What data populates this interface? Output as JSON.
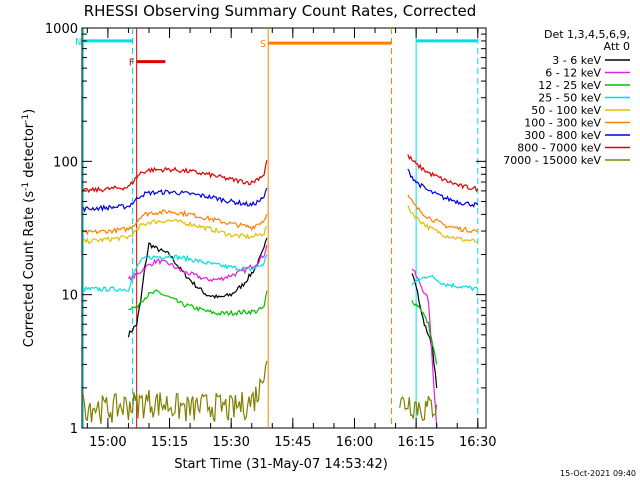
{
  "chart_data": {
    "type": "line",
    "title": "RHESSI Observing Summary Count Rates, Corrected",
    "xlabel": "Start Time (31-May-07 14:53:42)",
    "ylabel": "Corrected Count Rate (s^-1 detector^-1)",
    "yscale": "log",
    "ylim": [
      1,
      1000
    ],
    "xlim": [
      "14:53:42",
      "16:32:00"
    ],
    "x_ticks": [
      "15:00",
      "15:15",
      "15:30",
      "15:45",
      "16:00",
      "16:15",
      "16:30"
    ],
    "y_ticks": [
      "1",
      "10",
      "100",
      "1000"
    ],
    "footer_date": "15-Oct-2021 09:40",
    "legend": {
      "header": [
        "Det 1,3,4,5,6,9,",
        "Att 0"
      ],
      "placement": "right"
    },
    "series": [
      {
        "name": "3 - 6 keV",
        "color": "#000000",
        "x": [
          "15:05",
          "15:06",
          "15:07",
          "15:08",
          "15:09",
          "15:10",
          "15:12",
          "15:15",
          "15:18",
          "15:21",
          "15:24",
          "15:27",
          "15:30",
          "15:33",
          "15:36",
          "15:38",
          "15:39",
          "16:14",
          "16:15",
          "16:16",
          "16:17",
          "16:18",
          "16:19",
          "16:20"
        ],
        "y": [
          5,
          5.5,
          6,
          9,
          16,
          24,
          22,
          20,
          15,
          12,
          10,
          9.5,
          10,
          12,
          16,
          22,
          30,
          15,
          12,
          8,
          6,
          5,
          4,
          2
        ]
      },
      {
        "name": "6 - 12 keV",
        "color": "#e020e0",
        "x": [
          "15:05",
          "15:07",
          "15:09",
          "15:12",
          "15:15",
          "15:18",
          "15:21",
          "15:24",
          "15:27",
          "15:30",
          "15:33",
          "15:36",
          "15:38",
          "15:39",
          "16:14",
          "16:16",
          "16:18",
          "16:20"
        ],
        "y": [
          13,
          14,
          16,
          18,
          17,
          15,
          14,
          13,
          13,
          14,
          15,
          17,
          20,
          25,
          16,
          12,
          9,
          1
        ]
      },
      {
        "name": "12 - 25 keV",
        "color": "#00c000",
        "x": [
          "15:05",
          "15:07",
          "15:08",
          "15:10",
          "15:12",
          "15:15",
          "15:18",
          "15:21",
          "15:24",
          "15:27",
          "15:30",
          "15:33",
          "15:36",
          "15:38",
          "15:39",
          "16:14",
          "16:16",
          "16:18",
          "16:20"
        ],
        "y": [
          8,
          8,
          9,
          10,
          10.5,
          9.5,
          8.5,
          8,
          7.5,
          7.2,
          7.3,
          7.4,
          7.5,
          8,
          12,
          9,
          8,
          6,
          3
        ]
      },
      {
        "name": "25 - 50 keV",
        "color": "#00e0e0",
        "x": [
          "14:54",
          "15:00",
          "15:05",
          "15:07",
          "15:08",
          "15:10",
          "15:15",
          "15:20",
          "15:25",
          "15:30",
          "15:35",
          "15:38",
          "15:39",
          "16:14",
          "16:16",
          "16:18",
          "16:22",
          "16:26",
          "16:30"
        ],
        "y": [
          11,
          11,
          11,
          16,
          18,
          19,
          19.5,
          18.5,
          17,
          16,
          15.5,
          17,
          22,
          12,
          13,
          14,
          12,
          11.5,
          11
        ]
      },
      {
        "name": "50 - 100 keV",
        "color": "#e0c000",
        "x": [
          "14:54",
          "15:00",
          "15:05",
          "15:07",
          "15:08",
          "15:10",
          "15:15",
          "15:20",
          "15:25",
          "15:30",
          "15:35",
          "15:38",
          "15:39",
          "16:13",
          "16:15",
          "16:18",
          "16:22",
          "16:26",
          "16:30"
        ],
        "y": [
          25,
          26,
          27,
          30,
          33,
          35,
          36,
          34,
          31,
          28,
          27,
          29,
          35,
          45,
          38,
          32,
          28,
          26,
          25
        ]
      },
      {
        "name": "100 - 300 keV",
        "color": "#ff8000",
        "x": [
          "14:54",
          "15:00",
          "15:05",
          "15:07",
          "15:08",
          "15:10",
          "15:15",
          "15:20",
          "15:25",
          "15:30",
          "15:35",
          "15:38",
          "15:39",
          "16:13",
          "16:15",
          "16:18",
          "16:22",
          "16:26",
          "16:30"
        ],
        "y": [
          29,
          30,
          31,
          35,
          39,
          41,
          42,
          40,
          37,
          34,
          32,
          36,
          45,
          55,
          45,
          38,
          33,
          31,
          30
        ]
      },
      {
        "name": "300 - 800 keV",
        "color": "#0000e0",
        "x": [
          "14:54",
          "15:00",
          "15:05",
          "15:07",
          "15:08",
          "15:10",
          "15:15",
          "15:20",
          "15:25",
          "15:30",
          "15:35",
          "15:38",
          "15:39",
          "16:13",
          "16:15",
          "16:18",
          "16:22",
          "16:26",
          "16:30"
        ],
        "y": [
          44,
          45,
          46,
          52,
          56,
          58,
          59,
          57,
          54,
          50,
          47,
          53,
          70,
          85,
          70,
          60,
          53,
          49,
          47
        ]
      },
      {
        "name": "800 - 7000 keV",
        "color": "#e00000",
        "x": [
          "14:54",
          "15:00",
          "15:05",
          "15:07",
          "15:08",
          "15:10",
          "15:15",
          "15:20",
          "15:25",
          "15:30",
          "15:35",
          "15:38",
          "15:39",
          "16:13",
          "16:15",
          "16:18",
          "16:22",
          "16:26",
          "16:30"
        ],
        "y": [
          60,
          62,
          64,
          76,
          82,
          86,
          87,
          84,
          79,
          73,
          69,
          80,
          115,
          110,
          95,
          82,
          72,
          65,
          62
        ]
      },
      {
        "name": "7000 - 15000 keV",
        "color": "#808000",
        "x": [
          "14:54",
          "15:00",
          "15:05",
          "15:10",
          "15:15",
          "15:20",
          "15:25",
          "15:30",
          "15:35",
          "15:37",
          "15:38",
          "15:39",
          "16:11",
          "16:13",
          "16:15",
          "16:17",
          "16:20"
        ],
        "y": [
          1.5,
          1.4,
          1.5,
          1.6,
          1.5,
          1.4,
          1.5,
          1.4,
          1.6,
          2,
          3,
          4,
          1.5,
          1.6,
          1.5,
          1.4,
          1.5
        ]
      }
    ],
    "flags": [
      {
        "label": "N",
        "color": "#00e0e0",
        "start": "14:54",
        "end": "15:06",
        "level": 800,
        "dashed_end": true
      },
      {
        "label": "F",
        "color": "#e00000",
        "start": "15:07",
        "end": "15:14",
        "level": 560,
        "dashed_end": false
      },
      {
        "label": "S",
        "color": "#ff8000",
        "start": "15:39",
        "end": "16:09",
        "level": 770,
        "dashed_end": true
      },
      {
        "label": "",
        "color": "#00e0e0",
        "start": "16:15",
        "end": "16:30",
        "level": 800,
        "dashed_end": true
      }
    ],
    "gaps": [
      {
        "start": "15:40",
        "end": "16:11"
      }
    ]
  }
}
